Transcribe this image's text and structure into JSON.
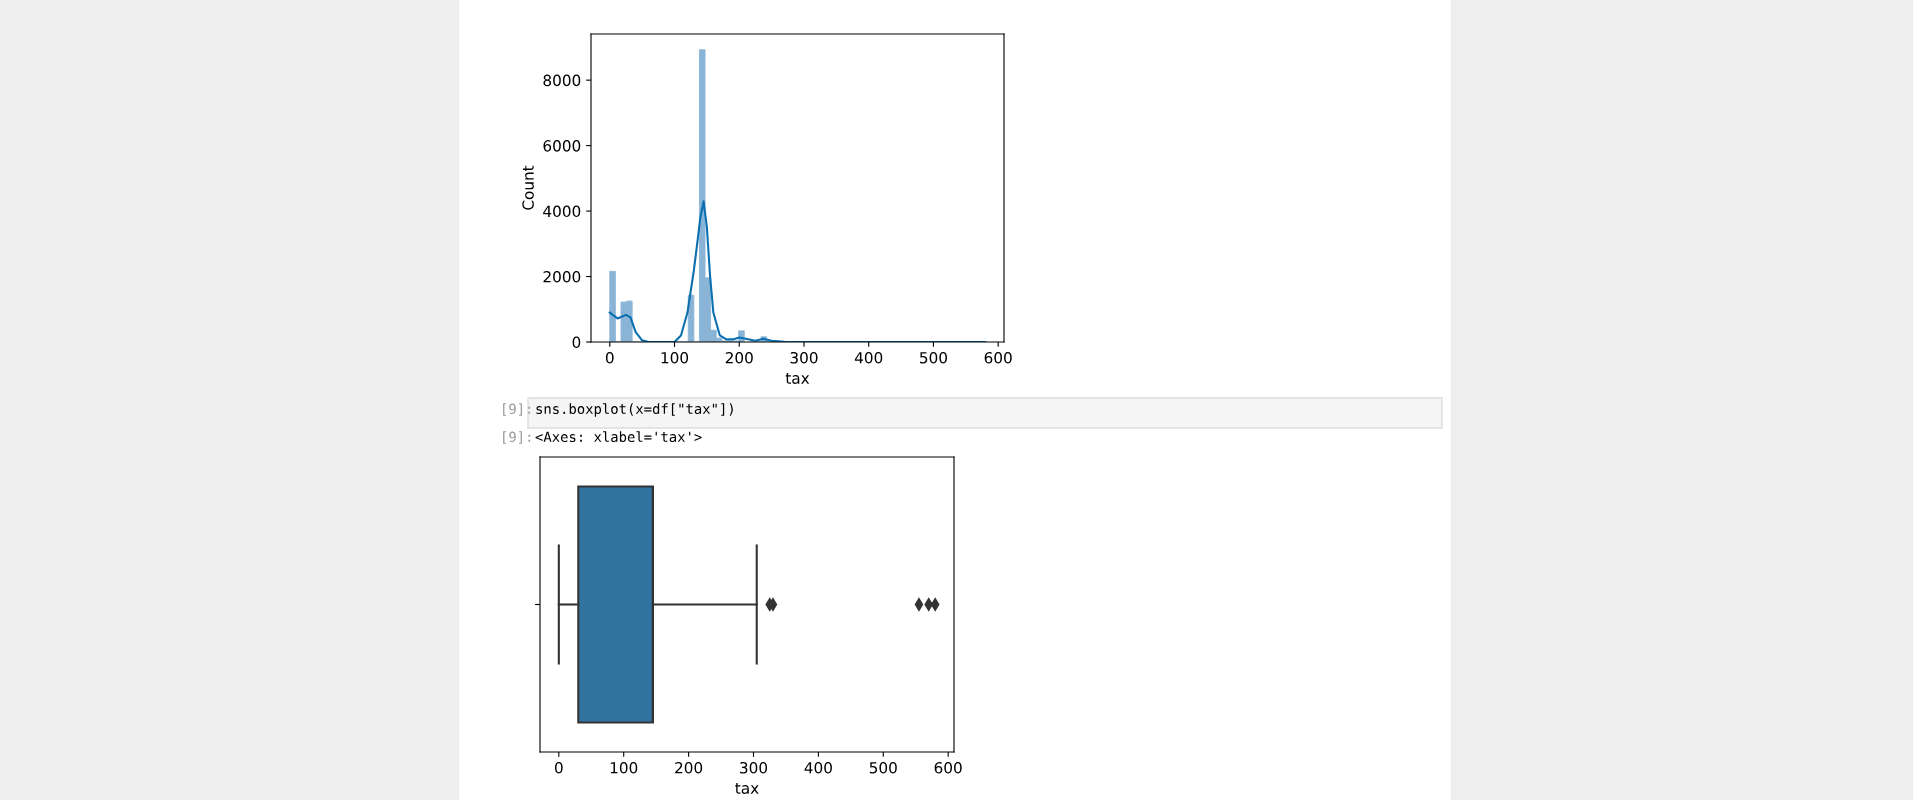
{
  "chart_data": [
    {
      "type": "histogram",
      "xlabel": "tax",
      "ylabel": "Count",
      "bins": [
        0,
        8.7,
        17.3,
        26.0,
        34.6,
        43.3,
        51.9,
        60.6,
        69.3,
        77.9,
        86.6,
        95.2,
        103.9,
        112.5,
        121.2,
        129.9,
        138.5,
        147.2,
        155.8,
        164.5,
        173.1,
        181.8,
        190.4,
        199.1,
        207.8,
        216.4,
        225.1,
        233.7,
        242.4,
        251.0,
        259.7,
        268.4,
        277.0,
        285.7,
        294.3,
        303.0,
        311.6,
        320.3,
        328.9,
        337.6,
        346.3,
        354.9,
        363.6,
        372.2,
        380.9,
        389.5,
        398.2,
        406.9,
        415.5,
        424.2,
        432.8,
        441.5,
        450.1,
        458.8,
        467.5,
        476.1,
        484.8,
        493.4,
        502.1,
        510.7,
        519.4,
        528.1,
        536.7,
        545.4,
        554.0,
        562.7,
        571.3,
        580.0
      ],
      "series": [
        {
          "type": "histogram",
          "color": "#8ab4d6",
          "values": [
            2160,
            0,
            1220,
            1250,
            0,
            0,
            0,
            0,
            0,
            0,
            0,
            0,
            0,
            0,
            1430,
            0,
            8930,
            1960,
            360,
            120,
            30,
            30,
            30,
            340,
            null,
            0,
            0,
            160,
            0,
            0,
            0,
            0,
            0,
            0,
            0,
            0,
            0,
            0,
            0,
            0,
            0,
            0,
            0,
            0,
            0,
            0,
            0,
            0,
            0,
            0,
            0,
            0,
            0,
            0,
            0,
            0,
            0,
            0,
            0,
            0,
            0,
            0,
            0,
            0,
            0,
            0,
            0
          ]
        },
        {
          "type": "line",
          "color": "#0b6fb0",
          "x": [
            0,
            5,
            12,
            25,
            32,
            40,
            50,
            60,
            100,
            110,
            120,
            130,
            140,
            145,
            150,
            155,
            160,
            170,
            180,
            190,
            200,
            210,
            225,
            237,
            250,
            270,
            300,
            580
          ],
          "values": [
            900,
            820,
            720,
            830,
            750,
            300,
            50,
            0,
            0,
            200,
            900,
            2200,
            3800,
            4300,
            3500,
            2000,
            900,
            200,
            80,
            80,
            140,
            100,
            40,
            100,
            40,
            10,
            0,
            0
          ]
        }
      ],
      "xlim": [
        -29,
        609
      ],
      "xticks": [
        0,
        100,
        200,
        300,
        400,
        500,
        600
      ],
      "ylim": [
        0,
        9410
      ],
      "yticks": [
        0,
        2000,
        4000,
        6000,
        8000
      ],
      "grid": false
    },
    {
      "type": "box",
      "orientation": "horizontal",
      "xlabel": "tax",
      "categories": [
        null
      ],
      "color": "#3274a1",
      "boxes": [
        {
          "low": 0,
          "q1": 30,
          "median": 145,
          "q3": 145,
          "high": 305,
          "outliers": [
            325,
            330,
            555,
            570,
            580
          ]
        }
      ],
      "xlim": [
        -29,
        609
      ],
      "xticks": [
        0,
        100,
        200,
        300,
        400,
        500,
        600
      ],
      "grid": false,
      "annotations": [
        "[9]:",
        "sns.boxplot(x=df[\"tax\"])",
        "[9]:",
        "<Axes: xlabel='tax'>"
      ]
    }
  ]
}
